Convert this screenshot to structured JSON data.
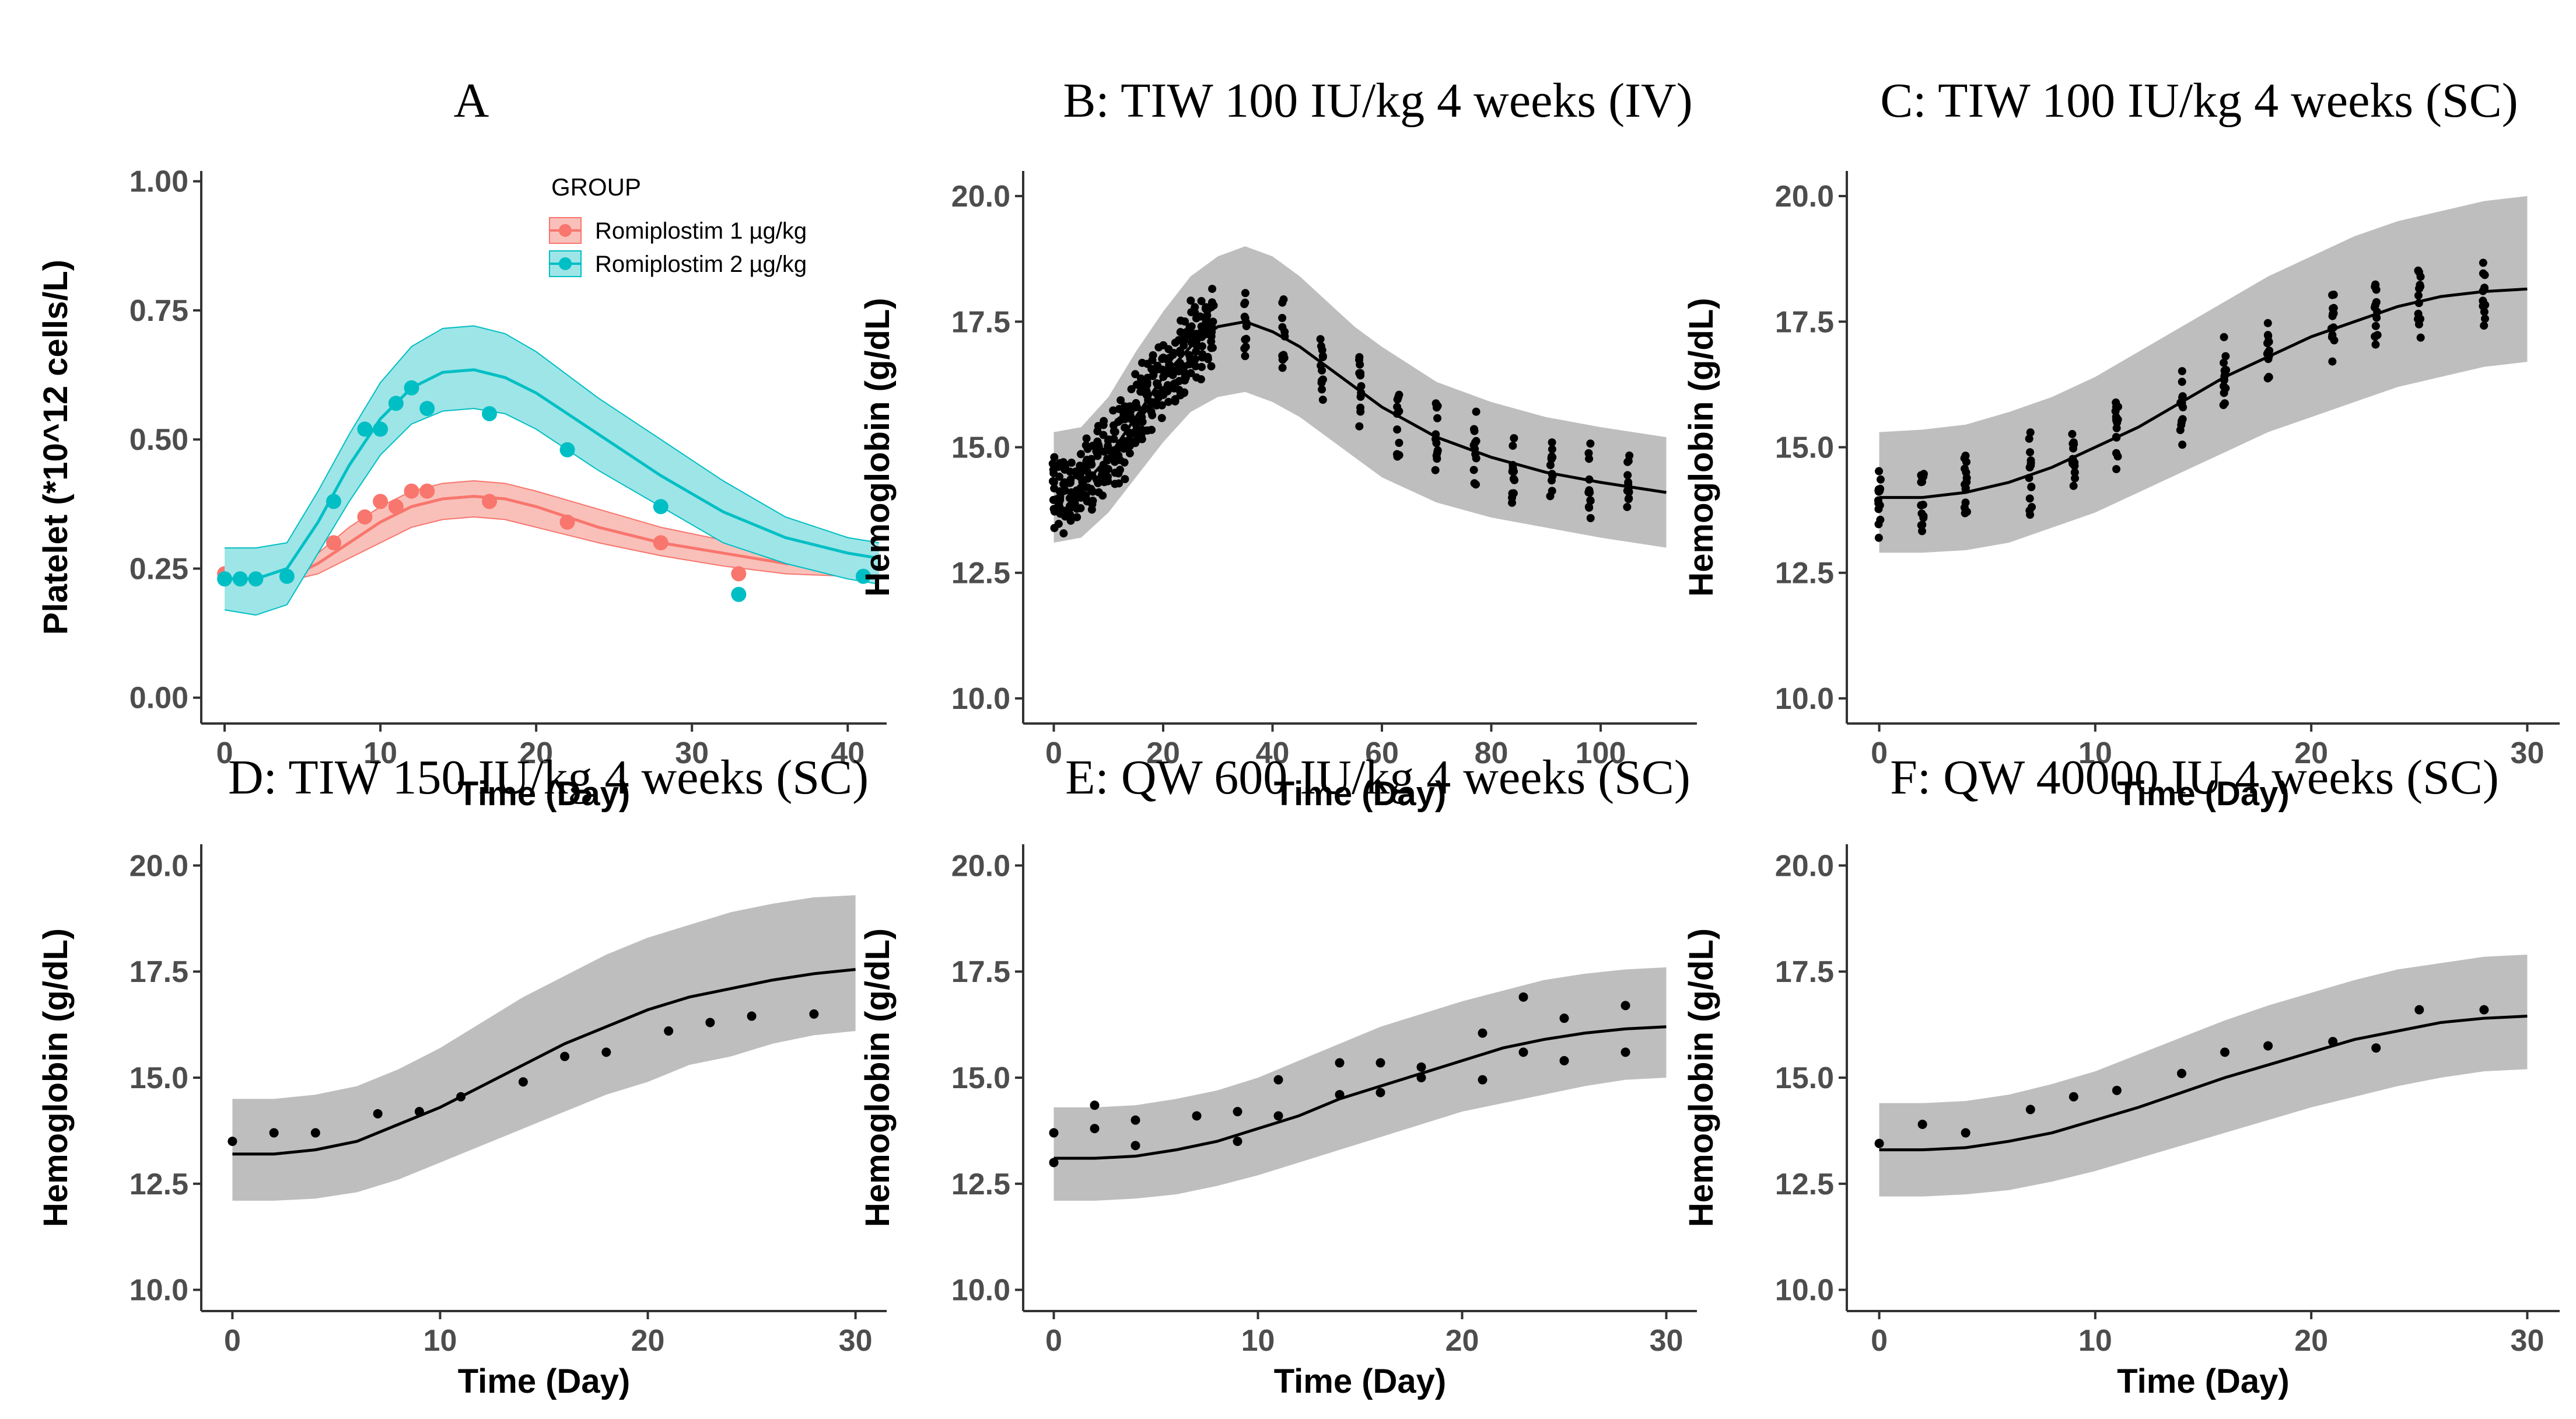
{
  "figure": {
    "colors": {
      "band_gray": "#bebebe",
      "line": "#000000",
      "red": "#f8766d",
      "teal": "#00bfc4",
      "red_fill": "#f9c0ba",
      "teal_fill": "#9ee5e7"
    }
  },
  "chart_data": [
    {
      "id": "A",
      "type": "line",
      "title": "A",
      "xlabel": "Time (Day)",
      "ylabel": "Platelet (*10^12 cells/L)",
      "xlim": [
        -1.5,
        42.5
      ],
      "ylim": [
        -0.05,
        1.02
      ],
      "xticks": [
        0,
        10,
        20,
        30,
        40
      ],
      "yticks": [
        0.0,
        0.25,
        0.5,
        0.75,
        1.0
      ],
      "ytick_labels": [
        "0.00",
        "0.25",
        "0.50",
        "0.75",
        "1.00"
      ],
      "legend": {
        "title": "GROUP",
        "position": "top-right"
      },
      "series": [
        {
          "name": "Romiplostim 1 µg/kg",
          "color": "#f8766d",
          "fill": "#f9c0ba",
          "x": [
            0,
            2,
            4,
            6,
            8,
            10,
            12,
            14,
            16,
            18,
            20,
            24,
            28,
            32,
            36,
            40,
            42
          ],
          "median": [
            0.23,
            0.23,
            0.23,
            0.26,
            0.3,
            0.34,
            0.37,
            0.385,
            0.39,
            0.385,
            0.37,
            0.33,
            0.3,
            0.28,
            0.26,
            0.25,
            0.245
          ],
          "lower": [
            0.225,
            0.225,
            0.225,
            0.24,
            0.27,
            0.3,
            0.33,
            0.345,
            0.35,
            0.345,
            0.33,
            0.3,
            0.275,
            0.255,
            0.24,
            0.235,
            0.23
          ],
          "upper": [
            0.24,
            0.24,
            0.24,
            0.28,
            0.33,
            0.37,
            0.4,
            0.415,
            0.42,
            0.415,
            0.4,
            0.365,
            0.33,
            0.305,
            0.285,
            0.27,
            0.265
          ],
          "obs_x": [
            0,
            1,
            2,
            4,
            7,
            9,
            10,
            11,
            12,
            13,
            17,
            22,
            28,
            33,
            41
          ],
          "obs_y": [
            0.24,
            0.235,
            0.235,
            0.235,
            0.3,
            0.35,
            0.38,
            0.37,
            0.4,
            0.4,
            0.38,
            0.34,
            0.3,
            0.24,
            0.24
          ]
        },
        {
          "name": "Romiplostim 2 µg/kg",
          "color": "#00bfc4",
          "fill": "#9ee5e7",
          "x": [
            0,
            2,
            4,
            6,
            8,
            10,
            12,
            14,
            16,
            18,
            20,
            24,
            28,
            32,
            36,
            40,
            42
          ],
          "median": [
            0.23,
            0.23,
            0.25,
            0.34,
            0.45,
            0.54,
            0.6,
            0.63,
            0.635,
            0.62,
            0.59,
            0.51,
            0.43,
            0.36,
            0.31,
            0.28,
            0.27
          ],
          "lower": [
            0.17,
            0.16,
            0.18,
            0.28,
            0.38,
            0.47,
            0.53,
            0.555,
            0.56,
            0.55,
            0.52,
            0.44,
            0.37,
            0.3,
            0.26,
            0.23,
            0.22
          ],
          "upper": [
            0.29,
            0.29,
            0.3,
            0.4,
            0.51,
            0.61,
            0.68,
            0.715,
            0.72,
            0.705,
            0.67,
            0.58,
            0.5,
            0.42,
            0.35,
            0.31,
            0.3
          ],
          "obs_x": [
            0,
            1,
            2,
            4,
            7,
            9,
            10,
            11,
            12,
            13,
            17,
            22,
            28,
            33,
            41
          ],
          "obs_y": [
            0.23,
            0.23,
            0.23,
            0.235,
            0.38,
            0.52,
            0.52,
            0.57,
            0.6,
            0.56,
            0.55,
            0.48,
            0.37,
            0.2,
            0.235
          ]
        }
      ]
    },
    {
      "id": "B",
      "type": "line",
      "title": "B: TIW 100 IU/kg 4 weeks (IV)",
      "xlabel": "Time (Day)",
      "ylabel": "Hemoglobin (g/dL)",
      "xlim": [
        -5.6,
        117.6
      ],
      "ylim": [
        9.5,
        20.5
      ],
      "xticks": [
        0,
        20,
        40,
        60,
        80,
        100
      ],
      "yticks": [
        10.0,
        12.5,
        15.0,
        17.5,
        20.0
      ],
      "ytick_labels": [
        "10.0",
        "12.5",
        "15.0",
        "17.5",
        "20.0"
      ],
      "band_x": [
        0,
        5,
        10,
        15,
        20,
        25,
        30,
        35,
        40,
        45,
        50,
        55,
        60,
        70,
        80,
        90,
        100,
        112
      ],
      "median": [
        14.0,
        14.2,
        14.8,
        15.6,
        16.4,
        17.0,
        17.4,
        17.5,
        17.3,
        17.0,
        16.6,
        16.2,
        15.8,
        15.2,
        14.8,
        14.5,
        14.3,
        14.1
      ],
      "lower": [
        13.1,
        13.2,
        13.7,
        14.4,
        15.1,
        15.7,
        16.0,
        16.1,
        15.9,
        15.6,
        15.2,
        14.8,
        14.4,
        13.9,
        13.6,
        13.4,
        13.2,
        13.0
      ],
      "upper": [
        15.3,
        15.4,
        16.0,
        16.9,
        17.7,
        18.4,
        18.8,
        19.0,
        18.8,
        18.4,
        17.9,
        17.4,
        17.0,
        16.3,
        15.9,
        15.6,
        15.4,
        15.2
      ],
      "scatter_days": [
        0,
        1,
        2,
        3,
        4,
        5,
        6,
        7,
        8,
        9,
        10,
        11,
        12,
        13,
        14,
        15,
        16,
        17,
        18,
        19,
        20,
        21,
        22,
        23,
        24,
        25,
        26,
        27,
        28,
        29,
        35,
        42,
        49,
        56,
        63,
        70,
        77,
        84,
        91,
        98,
        105
      ],
      "scatter_points_per_day": 12,
      "scatter_spread": 1.0
    },
    {
      "id": "C",
      "type": "line",
      "title": "C: TIW 100 IU/kg 4 weeks (SC)",
      "xlabel": "Time (Day)",
      "ylabel": "Hemoglobin (g/dL)",
      "xlim": [
        -1.5,
        31.5
      ],
      "ylim": [
        9.5,
        20.5
      ],
      "xticks": [
        0,
        10,
        20,
        30
      ],
      "yticks": [
        10.0,
        12.5,
        15.0,
        17.5,
        20.0
      ],
      "ytick_labels": [
        "10.0",
        "12.5",
        "15.0",
        "17.5",
        "20.0"
      ],
      "band_x": [
        0,
        2,
        4,
        6,
        8,
        10,
        12,
        14,
        16,
        18,
        20,
        22,
        24,
        26,
        28,
        30
      ],
      "median": [
        14.0,
        14.0,
        14.1,
        14.3,
        14.6,
        15.0,
        15.4,
        15.9,
        16.4,
        16.8,
        17.2,
        17.5,
        17.8,
        18.0,
        18.1,
        18.15
      ],
      "lower": [
        12.9,
        12.9,
        12.95,
        13.1,
        13.4,
        13.7,
        14.1,
        14.5,
        14.9,
        15.3,
        15.6,
        15.9,
        16.2,
        16.4,
        16.6,
        16.7
      ],
      "upper": [
        15.3,
        15.35,
        15.45,
        15.7,
        16.0,
        16.4,
        16.9,
        17.4,
        17.9,
        18.4,
        18.8,
        19.2,
        19.5,
        19.7,
        19.9,
        20.0
      ],
      "scatter_days": [
        0,
        2,
        4,
        7,
        9,
        11,
        14,
        16,
        18,
        21,
        23,
        25,
        28
      ],
      "scatter_points_per_day": 14,
      "scatter_spread": 0.95
    },
    {
      "id": "D",
      "type": "line",
      "title": "D: TIW 150 IU/kg 4 weeks (SC)",
      "xlabel": "Time (Day)",
      "ylabel": "Hemoglobin (g/dL)",
      "xlim": [
        -1.5,
        31.5
      ],
      "ylim": [
        9.5,
        20.5
      ],
      "xticks": [
        0,
        10,
        20,
        30
      ],
      "yticks": [
        10.0,
        12.5,
        15.0,
        17.5,
        20.0
      ],
      "ytick_labels": [
        "10.0",
        "12.5",
        "15.0",
        "17.5",
        "20.0"
      ],
      "band_x": [
        0,
        2,
        4,
        6,
        8,
        10,
        12,
        14,
        16,
        18,
        20,
        22,
        24,
        26,
        28,
        30
      ],
      "median": [
        13.2,
        13.2,
        13.3,
        13.5,
        13.9,
        14.3,
        14.8,
        15.3,
        15.8,
        16.2,
        16.6,
        16.9,
        17.1,
        17.3,
        17.45,
        17.55
      ],
      "lower": [
        12.1,
        12.1,
        12.15,
        12.3,
        12.6,
        13.0,
        13.4,
        13.8,
        14.2,
        14.6,
        14.9,
        15.3,
        15.5,
        15.8,
        16.0,
        16.1
      ],
      "upper": [
        14.5,
        14.5,
        14.6,
        14.8,
        15.2,
        15.7,
        16.3,
        16.9,
        17.4,
        17.9,
        18.3,
        18.6,
        18.9,
        19.1,
        19.25,
        19.3
      ],
      "obs_x": [
        0,
        2,
        4,
        7,
        9,
        11,
        14,
        16,
        18,
        21,
        23,
        25,
        28
      ],
      "obs_y": [
        13.5,
        13.7,
        13.7,
        14.15,
        14.2,
        14.55,
        14.9,
        15.5,
        15.6,
        16.1,
        16.3,
        16.45,
        16.5
      ]
    },
    {
      "id": "E",
      "type": "line",
      "title": "E: QW 600 IU/kg 4 weeks (SC)",
      "xlabel": "Time (Day)",
      "ylabel": "Hemoglobin (g/dL)",
      "xlim": [
        -1.5,
        31.5
      ],
      "ylim": [
        9.5,
        20.5
      ],
      "xticks": [
        0,
        10,
        20,
        30
      ],
      "yticks": [
        10.0,
        12.5,
        15.0,
        17.5,
        20.0
      ],
      "ytick_labels": [
        "10.0",
        "12.5",
        "15.0",
        "17.5",
        "20.0"
      ],
      "band_x": [
        0,
        2,
        4,
        6,
        8,
        10,
        12,
        14,
        16,
        18,
        20,
        22,
        24,
        26,
        28,
        30
      ],
      "median": [
        13.1,
        13.1,
        13.15,
        13.3,
        13.5,
        13.8,
        14.1,
        14.5,
        14.8,
        15.1,
        15.4,
        15.7,
        15.9,
        16.05,
        16.15,
        16.2
      ],
      "lower": [
        12.1,
        12.1,
        12.15,
        12.25,
        12.45,
        12.7,
        13.0,
        13.3,
        13.6,
        13.9,
        14.2,
        14.4,
        14.6,
        14.8,
        14.95,
        15.0
      ],
      "upper": [
        14.3,
        14.3,
        14.35,
        14.5,
        14.7,
        15.0,
        15.4,
        15.8,
        16.2,
        16.5,
        16.8,
        17.05,
        17.3,
        17.45,
        17.55,
        17.6
      ],
      "obs_x": [
        0,
        0,
        2,
        2,
        4,
        4,
        7,
        9,
        9,
        11,
        11,
        14,
        14,
        16,
        16,
        18,
        18,
        21,
        21,
        23,
        23,
        25,
        25,
        28,
        28
      ],
      "obs_y": [
        13.0,
        13.7,
        14.35,
        13.8,
        14.0,
        13.4,
        14.1,
        13.5,
        14.2,
        14.1,
        14.95,
        14.6,
        15.35,
        14.65,
        15.35,
        15.0,
        15.25,
        14.95,
        16.05,
        15.6,
        16.9,
        15.4,
        16.4,
        15.6,
        16.7
      ]
    },
    {
      "id": "F",
      "type": "line",
      "title": "F: QW 40000 IU 4 weeks (SC)",
      "xlabel": "Time (Day)",
      "ylabel": "Hemoglobin (g/dL)",
      "xlim": [
        -1.5,
        31.5
      ],
      "ylim": [
        9.5,
        20.5
      ],
      "xticks": [
        0,
        10,
        20,
        30
      ],
      "yticks": [
        10.0,
        12.5,
        15.0,
        17.5,
        20.0
      ],
      "ytick_labels": [
        "10.0",
        "12.5",
        "15.0",
        "17.5",
        "20.0"
      ],
      "band_x": [
        0,
        2,
        4,
        6,
        8,
        10,
        12,
        14,
        16,
        18,
        20,
        22,
        24,
        26,
        28,
        30
      ],
      "median": [
        13.3,
        13.3,
        13.35,
        13.5,
        13.7,
        14.0,
        14.3,
        14.65,
        15.0,
        15.3,
        15.6,
        15.9,
        16.1,
        16.3,
        16.4,
        16.45
      ],
      "lower": [
        12.2,
        12.2,
        12.25,
        12.35,
        12.55,
        12.8,
        13.1,
        13.4,
        13.7,
        14.0,
        14.3,
        14.55,
        14.8,
        15.0,
        15.15,
        15.2
      ],
      "upper": [
        14.4,
        14.4,
        14.45,
        14.6,
        14.85,
        15.15,
        15.55,
        15.95,
        16.35,
        16.7,
        17.0,
        17.3,
        17.55,
        17.7,
        17.85,
        17.9
      ],
      "obs_x": [
        0,
        2,
        4,
        7,
        9,
        11,
        14,
        16,
        18,
        21,
        23,
        25,
        28
      ],
      "obs_y": [
        13.45,
        13.9,
        13.7,
        14.25,
        14.55,
        14.7,
        15.1,
        15.6,
        15.75,
        15.85,
        15.7,
        16.6,
        16.6
      ]
    }
  ]
}
